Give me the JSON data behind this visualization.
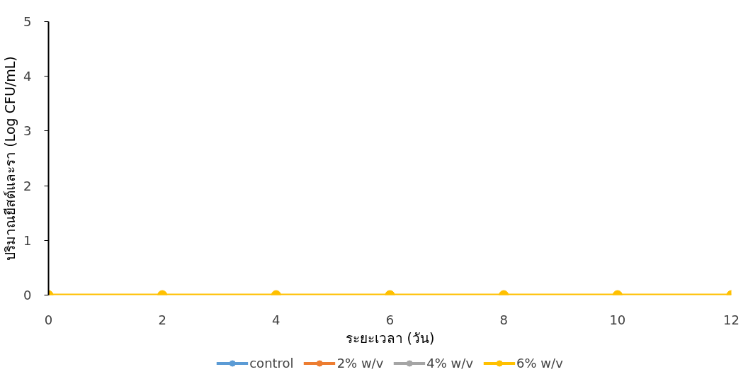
{
  "chart_data": {
    "type": "line",
    "xlabel": "ระยะเวลา (วัน)",
    "ylabel": "ปริมาณยีสต์และรา (Log CFU/mL)",
    "x": [
      0,
      2,
      4,
      6,
      8,
      10,
      12
    ],
    "series": [
      {
        "name": "control",
        "color": "#5b9bd5",
        "values": [
          null,
          null,
          null,
          null,
          null,
          null,
          null
        ]
      },
      {
        "name": "2% w/v",
        "color": "#ed7d31",
        "values": [
          null,
          null,
          null,
          null,
          null,
          null,
          null
        ]
      },
      {
        "name": "4% w/v",
        "color": "#a5a5a5",
        "values": [
          null,
          null,
          null,
          null,
          null,
          null,
          null
        ]
      },
      {
        "name": "6% w/v",
        "color": "#ffc000",
        "values": [
          0,
          0,
          0,
          0,
          0,
          0,
          0
        ]
      }
    ],
    "xlim": [
      0,
      12
    ],
    "xticks": [
      0,
      2,
      4,
      6,
      8,
      10,
      12
    ],
    "ylim": [
      0,
      5
    ],
    "yticks": [
      0,
      1,
      2,
      3,
      4,
      5
    ],
    "grid": false,
    "legend": "bottom",
    "marker": "circle",
    "line_style": "solid"
  }
}
